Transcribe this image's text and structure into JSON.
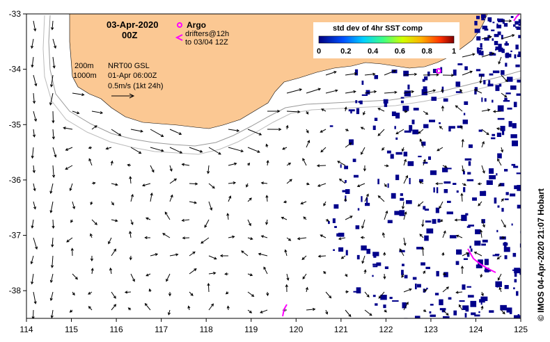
{
  "map": {
    "title_date": "03-Apr-2020",
    "title_time": "00Z",
    "legend_argo": "Argo",
    "legend_drifters_line1": "drifters@12h",
    "legend_drifters_line2": "to 03/04 12Z",
    "isobath_200": "200m",
    "isobath_1000": "1000m",
    "product_line1": "NRT00 GSL",
    "product_line2": "01-Apr 06:00Z",
    "vector_scale_label": "0.5m/s (1kt 24h)",
    "colorbar_title": "std dev of 4hr SST comp",
    "colorbar_ticks": [
      "0",
      "0.2",
      "0.4",
      "0.6",
      "0.8",
      "1"
    ],
    "credit": "© IMOS 04-Apr-2020 21:07 Hobart",
    "lon_ticks": [
      "114",
      "115",
      "116",
      "117",
      "118",
      "119",
      "120",
      "121",
      "122",
      "123",
      "124",
      "125"
    ],
    "lat_ticks": [
      "-33",
      "-34",
      "-35",
      "-36",
      "-37",
      "-38"
    ],
    "lon_range": [
      114,
      125
    ],
    "lat_range": [
      -38.5,
      -33
    ],
    "colors": {
      "land": "#fbc893",
      "sst_patch": "#00008b",
      "argo": "#ff00ff",
      "drifter": "#ff00ff",
      "isobath": "#999999",
      "arrow": "#000000"
    }
  }
}
